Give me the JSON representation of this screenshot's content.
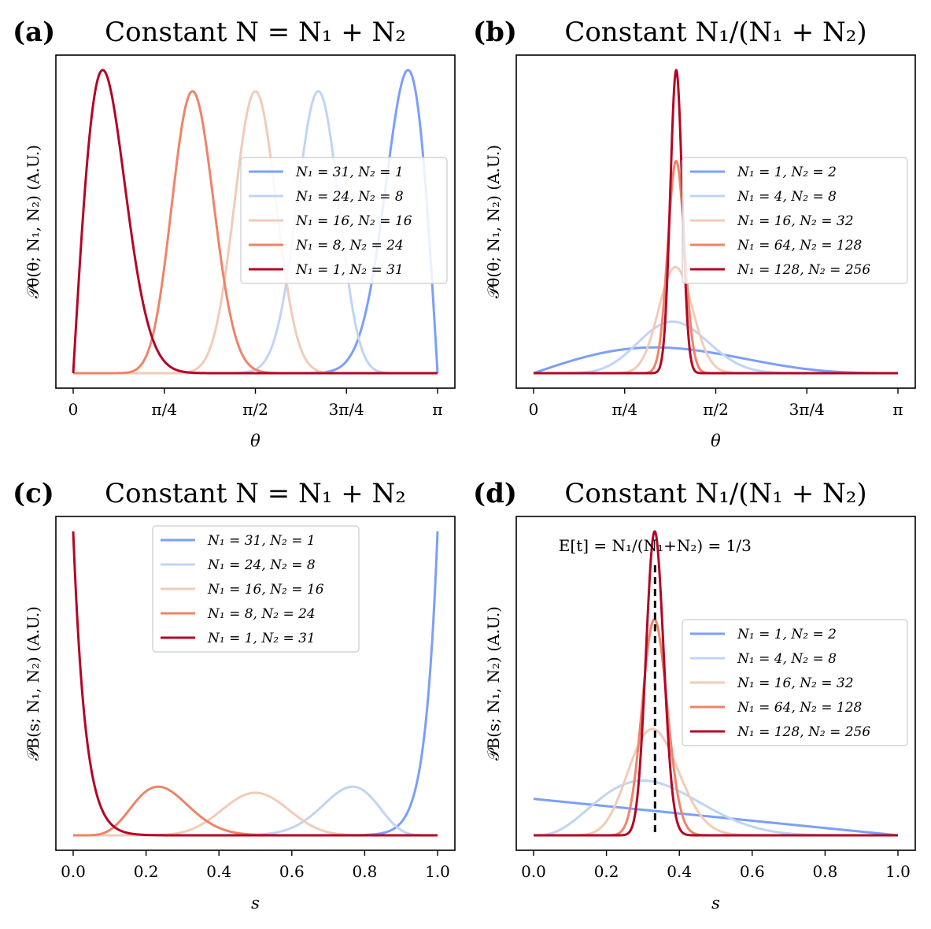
{
  "colors": {
    "series": [
      "#7b9ff9",
      "#c0d4f5",
      "#f2cbb7",
      "#ee8468",
      "#b40426"
    ],
    "axis": "#000000",
    "background": "#ffffff"
  },
  "panels": [
    {
      "id": "a",
      "tag": "(a)",
      "title": "Constant N = N₁ + N₂",
      "xlabel": "θ",
      "ylabel": "𝒫θ(θ; N₁, N₂) (A.U.)",
      "legend_pos": "center-right",
      "legend": [
        "N₁ = 31, N₂ = 1",
        "N₁ = 24, N₂ = 8",
        "N₁ = 16, N₂ = 16",
        "N₁ = 8, N₂ = 24",
        "N₁ = 1, N₂ = 31"
      ]
    },
    {
      "id": "b",
      "tag": "(b)",
      "title": "Constant N₁/(N₁ + N₂)",
      "xlabel": "θ",
      "ylabel": "𝒫θ(θ; N₁, N₂) (A.U.)",
      "legend_pos": "center-right",
      "legend": [
        "N₁ = 1, N₂ = 2",
        "N₁ = 4, N₂ = 8",
        "N₁ = 16, N₂ = 32",
        "N₁ = 64, N₂ = 128",
        "N₁ = 128, N₂ = 256"
      ]
    },
    {
      "id": "c",
      "tag": "(c)",
      "title": "Constant N = N₁ + N₂",
      "xlabel": "s",
      "ylabel": "𝒫B(s; N₁, N₂) (A.U.)",
      "legend_pos": "top-center",
      "legend": [
        "N₁ = 31, N₂ = 1",
        "N₁ = 24, N₂ = 8",
        "N₁ = 16, N₂ = 16",
        "N₁ = 8, N₂ = 24",
        "N₁ = 1, N₂ = 31"
      ]
    },
    {
      "id": "d",
      "tag": "(d)",
      "title": "Constant N₁/(N₁ + N₂)",
      "xlabel": "s",
      "ylabel": "𝒫B(s; N₁, N₂) (A.U.)",
      "legend_pos": "center-right",
      "legend": [
        "N₁ = 1, N₂ = 2",
        "N₁ = 4, N₂ = 8",
        "N₁ = 16, N₂ = 32",
        "N₁ = 64, N₂ = 128",
        "N₁ = 128, N₂ = 256"
      ],
      "annotation": "E[t] = N₁/(N₁+N₂) = 1/3"
    }
  ],
  "chart_data": [
    {
      "type": "line",
      "panel": "a",
      "title": "Constant N = N₁ + N₂",
      "xlabel": "θ",
      "ylabel": "𝒫θ(θ; N₁, N₂) (A.U.)",
      "x_range": [
        0,
        3.14159
      ],
      "xticks": [
        0,
        0.7854,
        1.5708,
        2.3562,
        3.14159
      ],
      "xtick_labels": [
        "0",
        "π/4",
        "π/2",
        "3π/4",
        "π"
      ],
      "y_ticks_shown": false,
      "series": [
        {
          "name": "N₁ = 31, N₂ = 1",
          "N1": 31,
          "N2": 1,
          "peak_x": 2.87,
          "peak_rel": 1.0
        },
        {
          "name": "N₁ = 24, N₂ = 8",
          "N1": 24,
          "N2": 8,
          "peak_x": 2.1,
          "peak_rel": 0.93
        },
        {
          "name": "N₁ = 16, N₂ = 16",
          "N1": 16,
          "N2": 16,
          "peak_x": 1.57,
          "peak_rel": 0.93
        },
        {
          "name": "N₁ = 8, N₂ = 24",
          "N1": 8,
          "N2": 24,
          "peak_x": 1.04,
          "peak_rel": 0.93
        },
        {
          "name": "N₁ = 1, N₂ = 31",
          "N1": 1,
          "N2": 31,
          "peak_x": 0.25,
          "peak_rel": 1.0
        }
      ]
    },
    {
      "type": "line",
      "panel": "b",
      "title": "Constant N₁/(N₁ + N₂)",
      "xlabel": "θ",
      "ylabel": "𝒫θ(θ; N₁, N₂) (A.U.)",
      "x_range": [
        0,
        3.14159
      ],
      "xticks": [
        0,
        0.7854,
        1.5708,
        2.3562,
        3.14159
      ],
      "xtick_labels": [
        "0",
        "π/4",
        "π/2",
        "3π/4",
        "π"
      ],
      "y_ticks_shown": false,
      "series": [
        {
          "name": "N₁ = 1, N₂ = 2",
          "N1": 1,
          "N2": 2,
          "peak_x": 1.16,
          "peak_rel": 0.085
        },
        {
          "name": "N₁ = 4, N₂ = 8",
          "N1": 4,
          "N2": 8,
          "peak_x": 1.2,
          "peak_rel": 0.17
        },
        {
          "name": "N₁ = 16, N₂ = 32",
          "N1": 16,
          "N2": 32,
          "peak_x": 1.22,
          "peak_rel": 0.35
        },
        {
          "name": "N₁ = 64, N₂ = 128",
          "N1": 64,
          "N2": 128,
          "peak_x": 1.23,
          "peak_rel": 0.7
        },
        {
          "name": "N₁ = 128, N₂ = 256",
          "N1": 128,
          "N2": 256,
          "peak_x": 1.23,
          "peak_rel": 1.0
        }
      ]
    },
    {
      "type": "line",
      "panel": "c",
      "title": "Constant N = N₁ + N₂",
      "xlabel": "s",
      "ylabel": "𝒫B(s; N₁, N₂) (A.U.)",
      "x_range": [
        0,
        1
      ],
      "xticks": [
        0.0,
        0.2,
        0.4,
        0.6,
        0.8,
        1.0
      ],
      "xtick_labels": [
        "0.0",
        "0.2",
        "0.4",
        "0.6",
        "0.8",
        "1.0"
      ],
      "y_ticks_shown": false,
      "series": [
        {
          "name": "N₁ = 31, N₂ = 1",
          "N1": 31,
          "N2": 1,
          "peak_x": 1.0,
          "peak_rel": 1.0
        },
        {
          "name": "N₁ = 24, N₂ = 8",
          "N1": 24,
          "N2": 8,
          "peak_x": 0.77,
          "peak_rel": 0.16
        },
        {
          "name": "N₁ = 16, N₂ = 16",
          "N1": 16,
          "N2": 16,
          "peak_x": 0.5,
          "peak_rel": 0.14
        },
        {
          "name": "N₁ = 8, N₂ = 24",
          "N1": 8,
          "N2": 24,
          "peak_x": 0.23,
          "peak_rel": 0.16
        },
        {
          "name": "N₁ = 1, N₂ = 31",
          "N1": 1,
          "N2": 31,
          "peak_x": 0.0,
          "peak_rel": 1.0
        }
      ]
    },
    {
      "type": "line",
      "panel": "d",
      "title": "Constant N₁/(N₁ + N₂)",
      "xlabel": "s",
      "ylabel": "𝒫B(s; N₁, N₂) (A.U.)",
      "x_range": [
        0,
        1
      ],
      "xticks": [
        0.0,
        0.2,
        0.4,
        0.6,
        0.8,
        1.0
      ],
      "xtick_labels": [
        "0.0",
        "0.2",
        "0.4",
        "0.6",
        "0.8",
        "1.0"
      ],
      "y_ticks_shown": false,
      "vline_x": 0.3333,
      "annotation": "E[t] = N₁/(N₁+N₂) = 1/3",
      "series": [
        {
          "name": "N₁ = 1, N₂ = 2",
          "N1": 1,
          "N2": 2,
          "peak_x": 0.0,
          "peak_rel": 0.12
        },
        {
          "name": "N₁ = 4, N₂ = 8",
          "N1": 4,
          "N2": 8,
          "peak_x": 0.3,
          "peak_rel": 0.18
        },
        {
          "name": "N₁ = 16, N₂ = 32",
          "N1": 16,
          "N2": 32,
          "peak_x": 0.32,
          "peak_rel": 0.35
        },
        {
          "name": "N₁ = 64, N₂ = 128",
          "N1": 64,
          "N2": 128,
          "peak_x": 0.33,
          "peak_rel": 0.71
        },
        {
          "name": "N₁ = 128, N₂ = 256",
          "N1": 128,
          "N2": 256,
          "peak_x": 0.33,
          "peak_rel": 1.0
        }
      ]
    }
  ]
}
